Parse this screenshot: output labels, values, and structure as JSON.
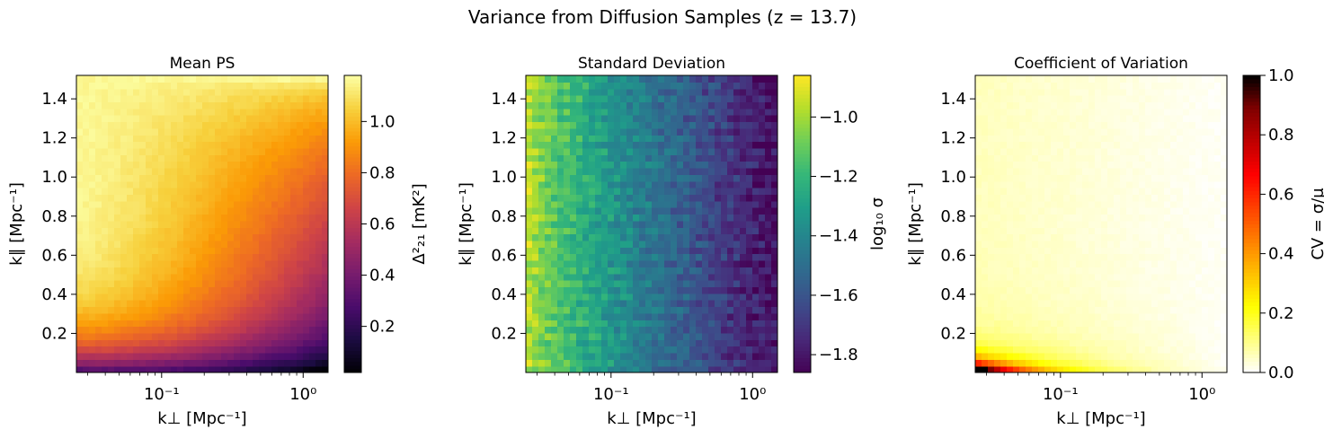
{
  "figure": {
    "suptitle": "Variance from Diffusion Samples (z = 13.7)"
  },
  "chart_data": [
    {
      "type": "heatmap",
      "title": "Mean PS",
      "xlabel": "k⊥ [Mpc⁻¹]",
      "ylabel": "k∥ [Mpc⁻¹]",
      "x_scale": "log",
      "xlim": [
        0.025,
        1.5
      ],
      "ylim": [
        0.0,
        1.52
      ],
      "xticks": [
        0.1,
        1.0
      ],
      "xtick_labels": [
        "10⁻¹",
        "10⁰"
      ],
      "yticks": [
        0.2,
        0.4,
        0.6,
        0.8,
        1.0,
        1.2,
        1.4
      ],
      "ytick_labels": [
        "0.2",
        "0.4",
        "0.6",
        "0.8",
        "1.0",
        "1.2",
        "1.4"
      ],
      "colormap": "inferno",
      "colorbar": {
        "label": "Δ²₂₁ [mK²]",
        "range": [
          0.02,
          1.18
        ],
        "ticks": [
          0.2,
          0.4,
          0.6,
          0.8,
          1.0
        ],
        "tick_labels": [
          "0.2",
          "0.4",
          "0.6",
          "0.8",
          "1.0"
        ],
        "colors": [
          "#000004",
          "#1b0c41",
          "#4a0c6b",
          "#781c6d",
          "#a52c60",
          "#cf4446",
          "#ed6925",
          "#fb9b06",
          "#f7d13d",
          "#fcffa4"
        ]
      },
      "grid": false
    },
    {
      "type": "heatmap",
      "title": "Standard Deviation",
      "xlabel": "k⊥ [Mpc⁻¹]",
      "ylabel": "k∥ [Mpc⁻¹]",
      "x_scale": "log",
      "xlim": [
        0.025,
        1.5
      ],
      "ylim": [
        0.0,
        1.52
      ],
      "xticks": [
        0.1,
        1.0
      ],
      "xtick_labels": [
        "10⁻¹",
        "10⁰"
      ],
      "yticks": [
        0.2,
        0.4,
        0.6,
        0.8,
        1.0,
        1.2,
        1.4
      ],
      "ytick_labels": [
        "0.2",
        "0.4",
        "0.6",
        "0.8",
        "1.0",
        "1.2",
        "1.4"
      ],
      "colormap": "viridis",
      "colorbar": {
        "label": "log₁₀ σ",
        "range": [
          -1.86,
          -0.86
        ],
        "ticks": [
          -1.8,
          -1.6,
          -1.4,
          -1.2,
          -1.0
        ],
        "tick_labels": [
          "−1.8",
          "−1.6",
          "−1.4",
          "−1.2",
          "−1.0"
        ],
        "colors": [
          "#440154",
          "#482878",
          "#3e4a89",
          "#31688e",
          "#26828e",
          "#1f9e89",
          "#35b779",
          "#6ece58",
          "#b5de2b",
          "#fde725"
        ]
      },
      "grid": false
    },
    {
      "type": "heatmap",
      "title": "Coefficient of Variation",
      "xlabel": "k⊥ [Mpc⁻¹]",
      "ylabel": "k∥ [Mpc⁻¹]",
      "x_scale": "log",
      "xlim": [
        0.025,
        1.5
      ],
      "ylim": [
        0.0,
        1.52
      ],
      "xticks": [
        0.1,
        1.0
      ],
      "xtick_labels": [
        "10⁻¹",
        "10⁰"
      ],
      "yticks": [
        0.2,
        0.4,
        0.6,
        0.8,
        1.0,
        1.2,
        1.4
      ],
      "ytick_labels": [
        "0.2",
        "0.4",
        "0.6",
        "0.8",
        "1.0",
        "1.2",
        "1.4"
      ],
      "colormap": "hot_r",
      "colorbar": {
        "label": "CV = σ/μ",
        "range": [
          0.0,
          1.0
        ],
        "ticks": [
          0.0,
          0.2,
          0.4,
          0.6,
          0.8,
          1.0
        ],
        "tick_labels": [
          "0.0",
          "0.2",
          "0.4",
          "0.6",
          "0.8",
          "1.0"
        ],
        "colors": [
          "#ffffff",
          "#ffff80",
          "#ffff00",
          "#ffc000",
          "#ff8000",
          "#ff4000",
          "#ff0000",
          "#c00000",
          "#800000",
          "#000000"
        ]
      },
      "grid": false
    }
  ]
}
